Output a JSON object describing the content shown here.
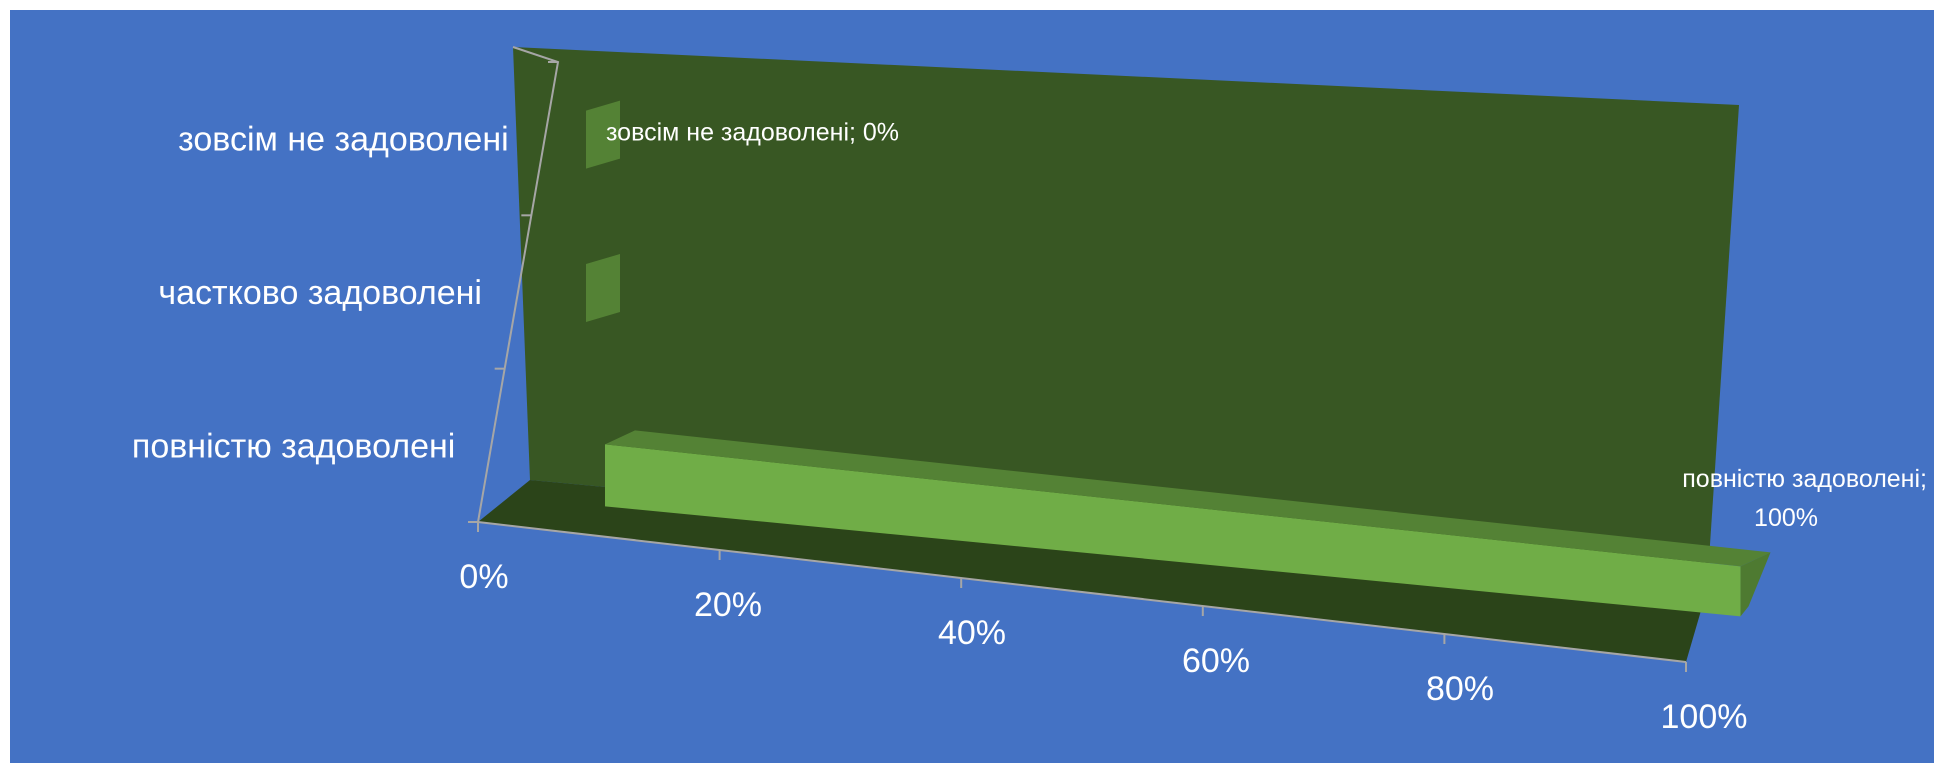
{
  "chart_data": {
    "type": "bar",
    "orientation": "horizontal",
    "style": "3d-100%-stacked",
    "categories": [
      "повністю задоволені",
      "частково задоволені",
      "зовсім не задоволені"
    ],
    "values": [
      100,
      0,
      0
    ],
    "xlim": [
      0,
      100
    ],
    "x_ticks": [
      "0%",
      "20%",
      "40%",
      "60%",
      "80%",
      "100%"
    ],
    "data_labels": [
      {
        "category_index": 0,
        "lines": [
          "повністю задоволені;",
          "100%"
        ]
      },
      {
        "category_index": 2,
        "lines": [
          "зовсім не задоволені; 0%"
        ]
      }
    ],
    "legend": "none",
    "grid": false,
    "colors": {
      "background": "#4472c4",
      "back_wall": "#385723",
      "floor": "#2b4419",
      "bar_front": "#70ad47",
      "bar_top": "#548235",
      "bar_side": "#4e7a31",
      "axis": "#a6a6a6",
      "text": "#ffffff"
    }
  }
}
